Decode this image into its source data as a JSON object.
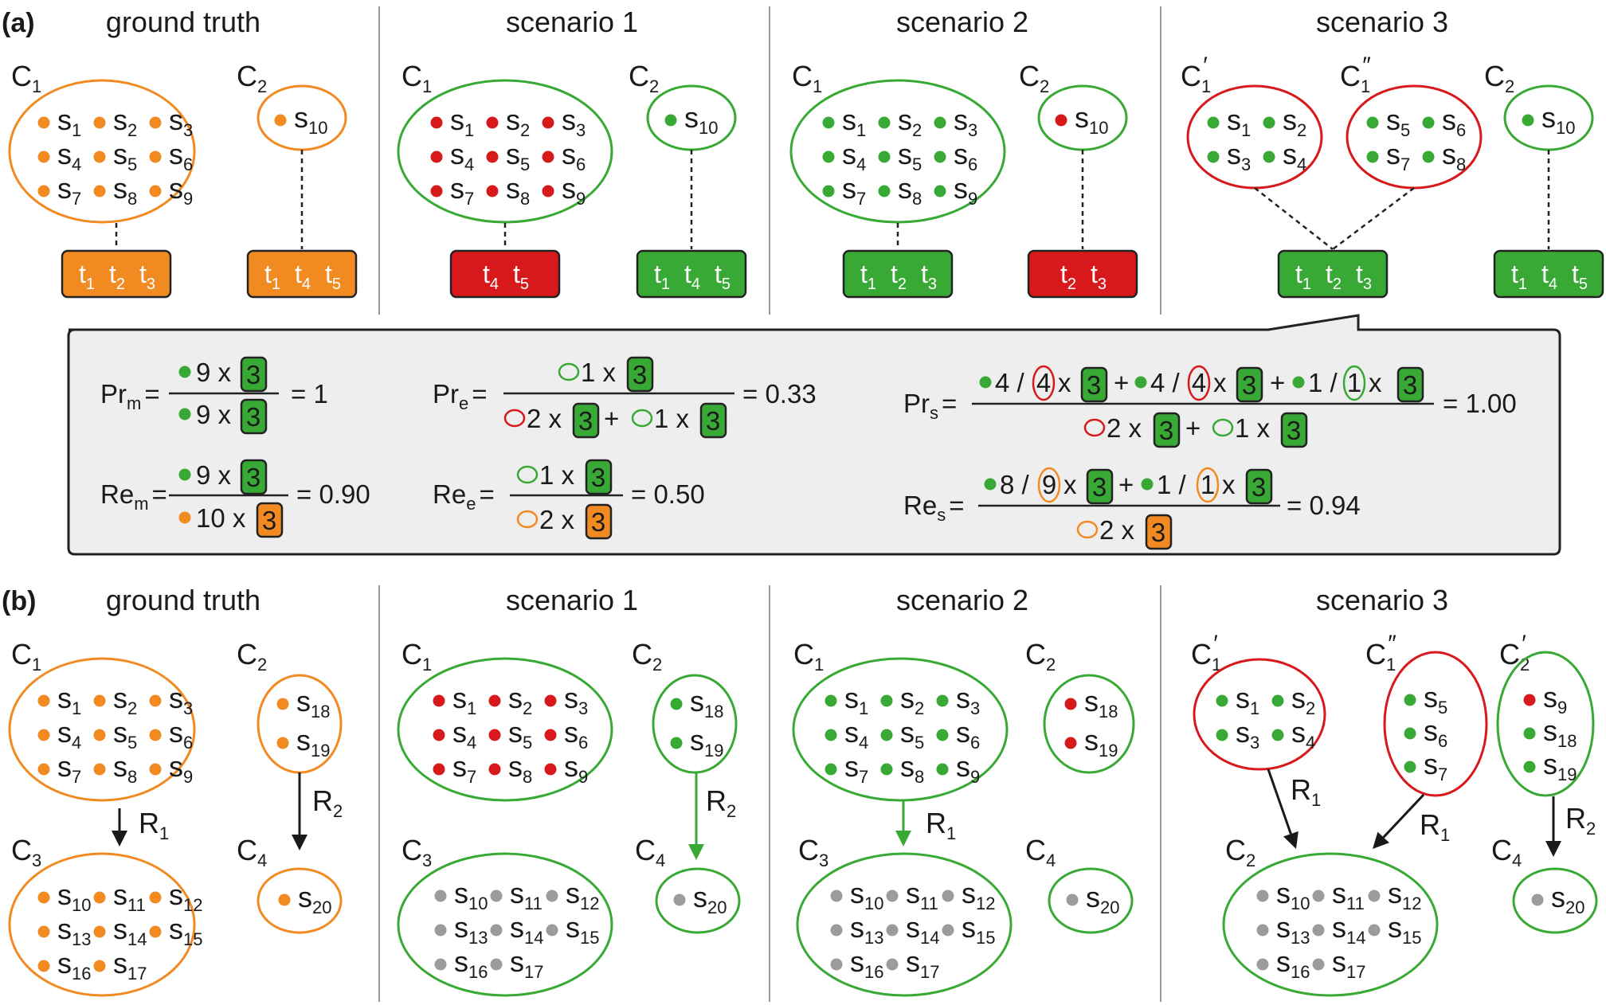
{
  "colors": {
    "orange": "#f28a22",
    "red": "#d7191c",
    "green": "#39a935",
    "gray": "#9b9b9b",
    "dark_green": "#2c8c2a",
    "panel_bg": "#eeeeee",
    "divider": "#9a9a9a"
  },
  "panel_a": {
    "label": "(a)",
    "titles": [
      "ground truth",
      "scenario 1",
      "scenario 2",
      "scenario 3"
    ]
  },
  "panel_b": {
    "label": "(b)",
    "titles": [
      "ground truth",
      "scenario 1",
      "scenario 2",
      "scenario 3"
    ]
  },
  "clusters": {
    "C1": {
      "main": "C",
      "sub": "1"
    },
    "C1p": {
      "main": "C",
      "sub": "1",
      "prime": "′"
    },
    "C1pp": {
      "main": "C",
      "sub": "1",
      "prime": "″"
    },
    "C2": {
      "main": "C",
      "sub": "2"
    },
    "C2p": {
      "main": "C",
      "sub": "2",
      "prime": "′"
    },
    "C3": {
      "main": "C",
      "sub": "3"
    },
    "C4": {
      "main": "C",
      "sub": "4"
    }
  },
  "relations": {
    "R1": {
      "main": "R",
      "sub": "1"
    },
    "R2": {
      "main": "R",
      "sub": "2"
    }
  },
  "token_sets": {
    "t123": [
      "1",
      "2",
      "3"
    ],
    "t145": [
      "1",
      "4",
      "5"
    ],
    "t45": [
      "4",
      "5"
    ],
    "t23": [
      "2",
      "3"
    ]
  },
  "token_letter": "t",
  "sample_letter": "s",
  "equations": {
    "Pr_m": {
      "label": "Pr",
      "sub": "m",
      "eq": "=",
      "num_n": "9 x",
      "den_n": "9 x",
      "box": "3",
      "result": "= 1"
    },
    "Re_m": {
      "label": "Re",
      "sub": "m",
      "eq": "=",
      "num_n": "9 x",
      "den_n": "10 x",
      "box": "3",
      "result": "= 0.90"
    },
    "Pr_e": {
      "label": "Pr",
      "sub": "e",
      "eq": "=",
      "num": "1 x",
      "den1": "2 x",
      "plus": "+",
      "den2": "1 x",
      "box": "3",
      "result": "= 0.33"
    },
    "Re_e": {
      "label": "Re",
      "sub": "e",
      "eq": "=",
      "num": "1 x",
      "den": "2 x",
      "box": "3",
      "result": "= 0.50"
    },
    "Pr_s": {
      "label": "Pr",
      "sub": "s",
      "eq": "=",
      "n1": "4 /",
      "c1": "4",
      "n2": "4 /",
      "c2": "4",
      "n3": "1 /",
      "c3": "1",
      "x": "x",
      "plus": "+",
      "den1": "2 x",
      "den2": "1 x",
      "box": "3",
      "result": "= 1.00"
    },
    "Re_s": {
      "label": "Re",
      "sub": "s",
      "eq": "=",
      "n1": "8 /",
      "c1": "9",
      "n2": "1 /",
      "c2": "1",
      "x": "x",
      "plus": "+",
      "den": "2 x",
      "box": "3",
      "result": "= 0.94"
    }
  }
}
